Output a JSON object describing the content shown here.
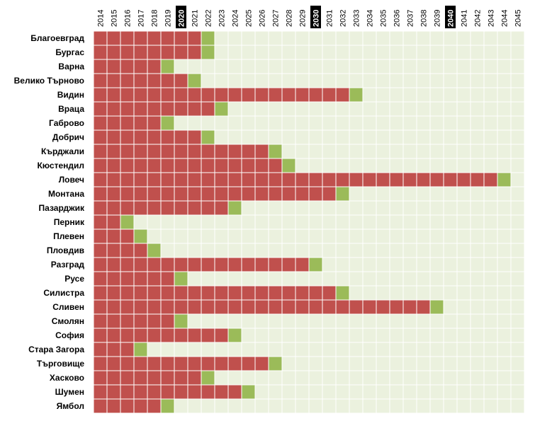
{
  "chart_data": {
    "type": "heatmap",
    "years": [
      2014,
      2015,
      2016,
      2017,
      2018,
      2019,
      2020,
      2021,
      2022,
      2023,
      2024,
      2025,
      2026,
      2027,
      2028,
      2029,
      2030,
      2031,
      2032,
      2033,
      2034,
      2035,
      2036,
      2037,
      2038,
      2039,
      2040,
      2041,
      2042,
      2043,
      2044,
      2045
    ],
    "highlighted_years": [
      2020,
      2030,
      2040
    ],
    "rows": [
      {
        "name": "Благоевград",
        "green_year": 2022
      },
      {
        "name": "Бургас",
        "green_year": 2022
      },
      {
        "name": "Варна",
        "green_year": 2019
      },
      {
        "name": "Велико Търново",
        "green_year": 2021
      },
      {
        "name": "Видин",
        "green_year": 2033
      },
      {
        "name": "Враца",
        "green_year": 2023
      },
      {
        "name": "Габрово",
        "green_year": 2019
      },
      {
        "name": "Добрич",
        "green_year": 2022
      },
      {
        "name": "Кърджали",
        "green_year": 2027
      },
      {
        "name": "Кюстендил",
        "green_year": 2028
      },
      {
        "name": "Ловеч",
        "green_year": 2044
      },
      {
        "name": "Монтана",
        "green_year": 2032
      },
      {
        "name": "Пазарджик",
        "green_year": 2024
      },
      {
        "name": "Перник",
        "green_year": 2016
      },
      {
        "name": "Плевен",
        "green_year": 2017
      },
      {
        "name": "Пловдив",
        "green_year": 2018
      },
      {
        "name": "Разград",
        "green_year": 2030
      },
      {
        "name": "Русе",
        "green_year": 2020
      },
      {
        "name": "Силистра",
        "green_year": 2032
      },
      {
        "name": "Сливен",
        "green_year": 2039
      },
      {
        "name": "Смолян",
        "green_year": 2020
      },
      {
        "name": "София",
        "green_year": 2024
      },
      {
        "name": "Стара Загора",
        "green_year": 2017
      },
      {
        "name": "Търговище",
        "green_year": 2027
      },
      {
        "name": "Хасково",
        "green_year": 2022
      },
      {
        "name": "Шумен",
        "green_year": 2025
      },
      {
        "name": "Ямбол",
        "green_year": 2019
      }
    ],
    "colors": {
      "before": "#c0504d",
      "target": "#9bbb59",
      "after": "#ebf1de",
      "highlight_bg": "#000000",
      "gridline": "#ffffff"
    },
    "grid": true,
    "legend": "none"
  }
}
